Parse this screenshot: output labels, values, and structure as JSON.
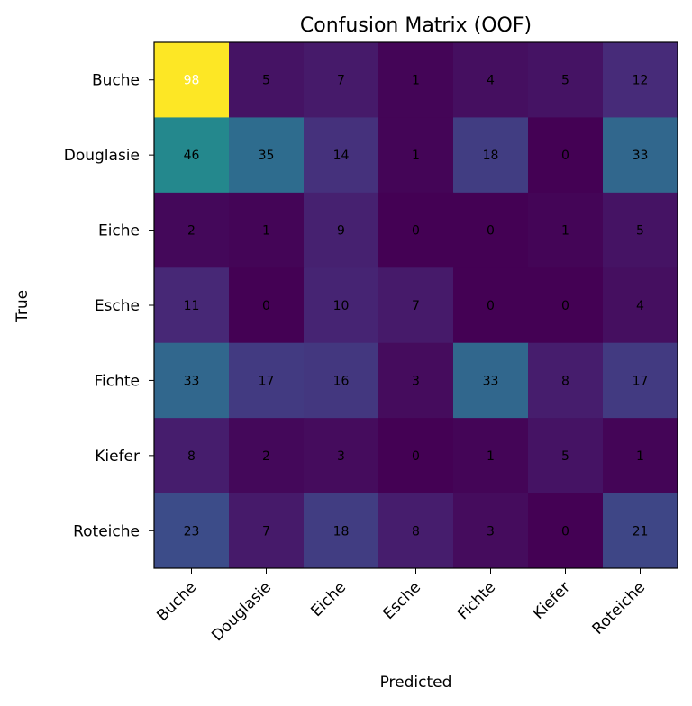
{
  "chart_data": {
    "type": "heatmap",
    "title": "Confusion Matrix (OOF)",
    "xlabel": "Predicted",
    "ylabel": "True",
    "x_categories": [
      "Buche",
      "Douglasie",
      "Eiche",
      "Esche",
      "Fichte",
      "Kiefer",
      "Roteiche"
    ],
    "y_categories": [
      "Buche",
      "Douglasie",
      "Eiche",
      "Esche",
      "Fichte",
      "Kiefer",
      "Roteiche"
    ],
    "values": [
      [
        98,
        5,
        7,
        1,
        4,
        5,
        12
      ],
      [
        46,
        35,
        14,
        1,
        18,
        0,
        33
      ],
      [
        2,
        1,
        9,
        0,
        0,
        1,
        5
      ],
      [
        11,
        0,
        10,
        7,
        0,
        0,
        4
      ],
      [
        33,
        17,
        16,
        3,
        33,
        8,
        17
      ],
      [
        8,
        2,
        3,
        0,
        1,
        5,
        1
      ],
      [
        23,
        7,
        18,
        8,
        3,
        0,
        21
      ]
    ],
    "vmin": 0,
    "vmax": 98,
    "colormap": "viridis"
  }
}
